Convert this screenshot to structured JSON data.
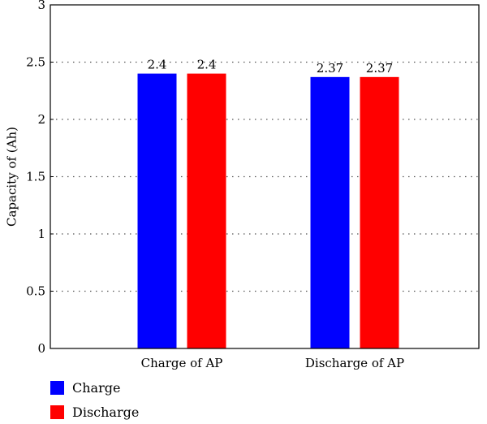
{
  "chart_data": {
    "type": "bar",
    "categories": [
      "Charge of AP",
      "Discharge of AP"
    ],
    "series": [
      {
        "name": "Charge",
        "values": [
          2.4,
          2.37
        ],
        "color": "#0000ff"
      },
      {
        "name": "Discharge",
        "values": [
          2.4,
          2.37
        ],
        "color": "#ff0000"
      }
    ],
    "data_labels": [
      [
        "2.4",
        "2.37"
      ],
      [
        "2.4",
        "2.37"
      ]
    ],
    "ylabel": "Capacity of (Ah)",
    "xlabel": "",
    "ylim": [
      0,
      3
    ],
    "yticks": [
      "0",
      "0.5",
      "1",
      "1.5",
      "2",
      "2.5",
      "3"
    ],
    "grid": "horizontal dotted",
    "legend_position": "bottom-left"
  }
}
